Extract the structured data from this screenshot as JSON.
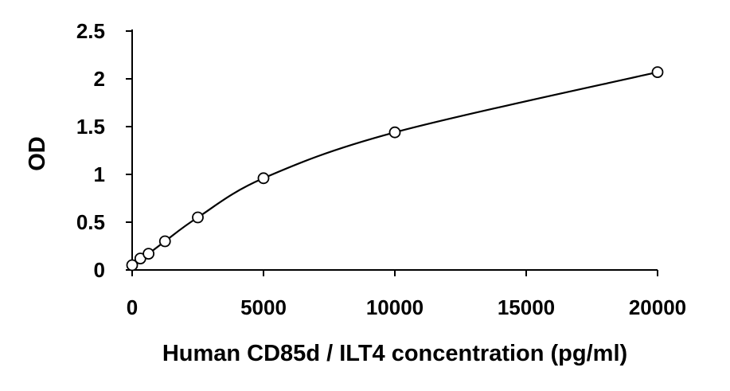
{
  "chart_data": {
    "type": "scatter",
    "title": "",
    "xlabel": "Human CD85d / ILT4 concentration (pg/ml)",
    "ylabel": "OD",
    "xlim": [
      0,
      20000
    ],
    "ylim": [
      0,
      2.5
    ],
    "x_ticks": [
      "0",
      "5000",
      "10000",
      "15000",
      "20000"
    ],
    "y_ticks": [
      "0",
      "0.5",
      "1",
      "1.5",
      "2",
      "2.5"
    ],
    "grid": false,
    "legend": "none",
    "trendline": "smooth",
    "marker": "open-circle",
    "colors": {
      "axis": "#000000",
      "curve": "#000000",
      "marker_fill": "#ffffff"
    },
    "series": [
      {
        "x": [
          0,
          312.5,
          625,
          1250,
          2500,
          5000,
          10000,
          20000
        ],
        "y": [
          0.05,
          0.12,
          0.17,
          0.3,
          0.55,
          0.96,
          1.44,
          2.07
        ]
      }
    ]
  }
}
